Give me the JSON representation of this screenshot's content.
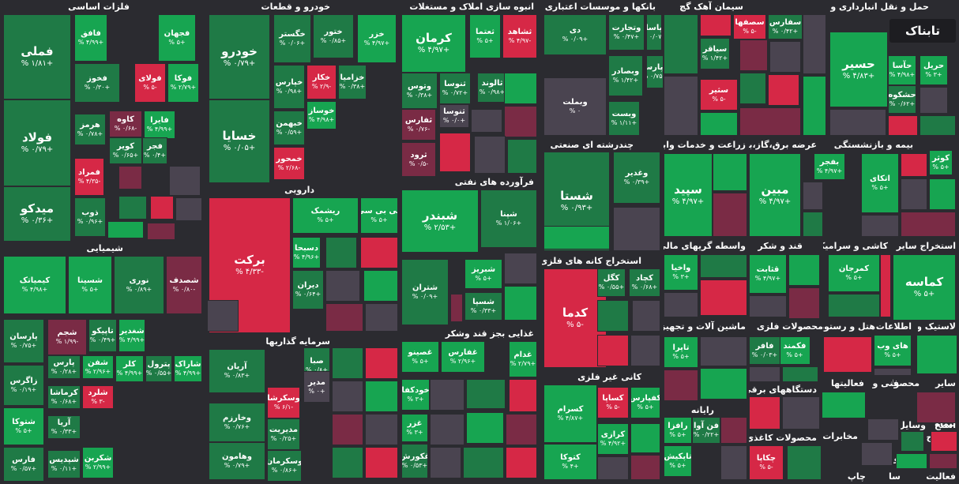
{
  "colors": {
    "pos_strong": "#17a551",
    "pos": "#1f7a46",
    "neutral": "#4a4450",
    "neg": "#7a2b45",
    "neg_strong": "#d62846",
    "bg": "#2b2b30"
  },
  "logo": {
    "text": "تابناک"
  },
  "chart_data": {
    "type": "heatmap",
    "layout": "treemap",
    "sectors": [
      {
        "name": "فلزات اساسی",
        "tiles": [
          {
            "symbol": "فملی",
            "change": "% ۱/۸۱+"
          },
          {
            "symbol": "فولاد",
            "change": "% ۰/۷۹+"
          },
          {
            "symbol": "میدکو",
            "change": "% ۰/۳۶+"
          },
          {
            "symbol": "فافق",
            "change": "% ۴/۹۹+"
          },
          {
            "symbol": "فجهان",
            "change": "% ۵+"
          },
          {
            "symbol": "فخوز",
            "change": "% ۰/۳۰+"
          },
          {
            "symbol": "فولای",
            "change": "% ۵-"
          },
          {
            "symbol": "فوکا",
            "change": "% ۲/۷۹+"
          },
          {
            "symbol": "کاوه",
            "change": "% ۰/۶۸-"
          },
          {
            "symbol": "هرمز",
            "change": "% ۰/۷۸+"
          },
          {
            "symbol": "فایرا",
            "change": "% ۴/۹۹+"
          },
          {
            "symbol": "کویر",
            "change": "% ۰/۶۵+"
          },
          {
            "symbol": "فجر",
            "change": "% ۰/۴+"
          },
          {
            "symbol": "فمراد",
            "change": "% ۴/۳۵-"
          },
          {
            "symbol": "ذوب",
            "change": "% ۰/۹۶+"
          }
        ]
      },
      {
        "name": "شیمیایی",
        "tiles": [
          {
            "symbol": "کیمیاتک",
            "change": "% ۴/۹۸+"
          },
          {
            "symbol": "شسینا",
            "change": "% ۵+"
          },
          {
            "symbol": "نوری",
            "change": "% ۰/۸۹+"
          },
          {
            "symbol": "شصدف",
            "change": "% ۰/۸۰-"
          },
          {
            "symbol": "پارسان",
            "change": "% ۰/۷۵+"
          },
          {
            "symbol": "شجم",
            "change": "% ۱/۹۹-"
          },
          {
            "symbol": "تاپیکو",
            "change": "% ۰/۴۹+"
          },
          {
            "symbol": "شغدیر",
            "change": "% ۴/۹۹+"
          },
          {
            "symbol": "پارس",
            "change": "% ۰/۲۸+"
          },
          {
            "symbol": "شفن",
            "change": "% ۲/۹۶+"
          },
          {
            "symbol": "کلر",
            "change": "% ۴/۹۹+"
          },
          {
            "symbol": "پترول",
            "change": "% ۰/۵۵+"
          },
          {
            "symbol": "شاراک",
            "change": "% ۴/۹۹+"
          },
          {
            "symbol": "زاگرس",
            "change": "% ۰/۱۹+"
          },
          {
            "symbol": "کرماشا",
            "change": "% ۰/۶۸+"
          },
          {
            "symbol": "شلرد",
            "change": "% ۳-"
          },
          {
            "symbol": "شتوکا",
            "change": "% ۵+"
          },
          {
            "symbol": "آریا",
            "change": "% ۰/۳۳+"
          },
          {
            "symbol": "فارس",
            "change": "% ۰/۵۷+"
          },
          {
            "symbol": "شپدیس",
            "change": "% ۰/۱۱+"
          },
          {
            "symbol": "شکربن",
            "change": "% ۲/۹۹+"
          }
        ]
      },
      {
        "name": "خودرو و قطعات",
        "tiles": [
          {
            "symbol": "خودرو",
            "change": "% ۰/۷۹+"
          },
          {
            "symbol": "خسایا",
            "change": "% ۰/۰۵+"
          },
          {
            "symbol": "خگستر",
            "change": "% ۰/۰۶+"
          },
          {
            "symbol": "ختور",
            "change": "% ۰/۸۵+"
          },
          {
            "symbol": "خزر",
            "change": "% ۴/۹۷+"
          },
          {
            "symbol": "خپارس",
            "change": "% ۰/۹۸+"
          },
          {
            "symbol": "خکار",
            "change": "% ۲/۹-"
          },
          {
            "symbol": "خزامیا",
            "change": "% ۰/۳۸+"
          },
          {
            "symbol": "خوساز",
            "change": "% ۴/۹۸+"
          },
          {
            "symbol": "خبهمن",
            "change": "% ۰/۵۹+"
          },
          {
            "symbol": "خمحور",
            "change": "% ۲/۶۸-"
          }
        ]
      },
      {
        "name": "دارویی",
        "tiles": [
          {
            "symbol": "برکت",
            "change": "% ۴/۳۳-"
          },
          {
            "symbol": "ریشمک",
            "change": "% ۵+"
          },
          {
            "symbol": "کی بی سی",
            "change": "% ۵+"
          },
          {
            "symbol": "دسبحا",
            "change": "% ۴/۹۶+"
          },
          {
            "symbol": "دیران",
            "change": "% ۰/۶۴+"
          }
        ]
      },
      {
        "name": "سرمایه گذاریها",
        "tiles": [
          {
            "symbol": "صبا",
            "change": "% ۰/۸+"
          },
          {
            "symbol": "مدیر",
            "change": "% ۰+"
          },
          {
            "symbol": "آریان",
            "change": "% ۰/۸۳+"
          },
          {
            "symbol": "وسکرشا",
            "change": "% ۶/۱-"
          },
          {
            "symbol": "مدیریت",
            "change": "% ۰/۲۵+"
          },
          {
            "symbol": "وخارزم",
            "change": "% ۰/۷۶+"
          },
          {
            "symbol": "وهامون",
            "change": "% ۰/۷۹+"
          },
          {
            "symbol": "وسکرمان",
            "change": "% ۰/۸۶+"
          }
        ]
      },
      {
        "name": "انبوه سازی املاک و مستغلات",
        "tiles": [
          {
            "symbol": "کرمان",
            "change": "% ۴/۹۷+"
          },
          {
            "symbol": "ثعتما",
            "change": "% ۵+"
          },
          {
            "symbol": "ثشاهد",
            "change": "% ۴/۹۷-"
          },
          {
            "symbol": "وتوس",
            "change": "% ۰/۳۸+"
          },
          {
            "symbol": "ثنوسا",
            "change": "% ۰/۷۲+"
          },
          {
            "symbol": "ثالوند",
            "change": "% ۰/۹۸+"
          },
          {
            "symbol": "ثفارس",
            "change": "% ۰/۷۶-"
          },
          {
            "symbol": "ثرود",
            "change": "% ۰/۵-"
          },
          {
            "symbol": "ثنوسا",
            "change": "% ۰/۰+"
          }
        ]
      },
      {
        "name": "فرآورده های نفتی",
        "tiles": [
          {
            "symbol": "شبندر",
            "change": "% ۲/۵۳+"
          },
          {
            "symbol": "شپنا",
            "change": "% ۱/۰۶+"
          },
          {
            "symbol": "شتران",
            "change": "% ۰/۰۹+"
          },
          {
            "symbol": "شبریز",
            "change": "% ۵+"
          },
          {
            "symbol": "شسپا",
            "change": "% ۰/۳۳+"
          }
        ]
      },
      {
        "name": "غذایی بجز قند وشکر",
        "tiles": [
          {
            "symbol": "غصینو",
            "change": "% ۵+"
          },
          {
            "symbol": "غفارس",
            "change": "% ۲/۹۶+"
          },
          {
            "symbol": "غدام",
            "change": "% ۲/۷۹+"
          },
          {
            "symbol": "خودکفا",
            "change": "% ۳+"
          },
          {
            "symbol": "غزر",
            "change": "% ۳+"
          },
          {
            "symbol": "غکورش",
            "change": "% ۰/۵۳+"
          }
        ]
      },
      {
        "name": "بانکها و موسسات اعتباری",
        "tiles": [
          {
            "symbol": "دی",
            "change": "% ۰/۰۹+"
          },
          {
            "symbol": "وتجارت",
            "change": "% ۰/۴۷+"
          },
          {
            "symbol": "وپاسار",
            "change": "% ۰/۰۷+"
          },
          {
            "symbol": "وبملت",
            "change": "% ۰"
          },
          {
            "symbol": "وبصادر",
            "change": "% ۱/۴۲+"
          },
          {
            "symbol": "وپارس",
            "change": "% ۰/۷۵+"
          },
          {
            "symbol": "وبست",
            "change": "% ۱/۱۱+"
          }
        ]
      },
      {
        "name": "چندرشته ای صنعتی",
        "tiles": [
          {
            "symbol": "شستا",
            "change": "% ۰/۹۳+"
          },
          {
            "symbol": "وغدیر",
            "change": "% ۰/۳۹+"
          }
        ]
      },
      {
        "name": "استخراج کانه های فلزی",
        "tiles": [
          {
            "symbol": "کدما",
            "change": "% ۵-"
          },
          {
            "symbol": "کگل",
            "change": "% ۰/۵۵+"
          },
          {
            "symbol": "کچاد",
            "change": "% ۰/۶۸+"
          }
        ]
      },
      {
        "name": "کانی غیر فلزی",
        "tiles": [
          {
            "symbol": "کسرام",
            "change": "% ۴/۸۷+"
          },
          {
            "symbol": "کساپا",
            "change": "% ۵-"
          },
          {
            "symbol": "کفپارس",
            "change": "% ۵+"
          },
          {
            "symbol": "کرازی",
            "change": "% ۴/۹۲+"
          },
          {
            "symbol": "کتوکا",
            "change": "% ۴+"
          }
        ]
      },
      {
        "name": "سیمان آهک گچ",
        "tiles": [
          {
            "symbol": "سصفها",
            "change": "% ۵-"
          },
          {
            "symbol": "سفارس",
            "change": "% ۰/۴۲+"
          },
          {
            "symbol": "سیاقر",
            "change": "% ۱/۴۲+"
          },
          {
            "symbol": "سثیر",
            "change": "% ۵-"
          }
        ]
      },
      {
        "name": "حمل و نقل انبارداری و ارتباطات",
        "tiles": [
          {
            "symbol": "حسیر",
            "change": "% ۴/۸۳+"
          },
          {
            "symbol": "حآسا",
            "change": "% ۴/۹۸+"
          },
          {
            "symbol": "حشکوه",
            "change": "% ۰/۶۲+"
          },
          {
            "symbol": "حریل",
            "change": "% ۳+"
          }
        ]
      },
      {
        "name": "زراعت و خدمات وابسته",
        "tiles": [
          {
            "symbol": "سپید",
            "change": "% ۴/۹۷+"
          }
        ]
      },
      {
        "name": "عرضه برق،گاز،بخار و آب گرم",
        "tiles": [
          {
            "symbol": "مبین",
            "change": "% ۴/۹۷+"
          },
          {
            "symbol": "بفجر",
            "change": "% ۴/۹۷+"
          }
        ]
      },
      {
        "name": "بیمه و بازنشستگی",
        "tiles": [
          {
            "symbol": "اتکای",
            "change": "% ۵+"
          },
          {
            "symbol": "کوثر",
            "change": "% ۵+"
          }
        ]
      },
      {
        "name": "واسطه گریهای مالی و",
        "tiles": [
          {
            "symbol": "واخیا",
            "change": "% ۳+"
          }
        ]
      },
      {
        "name": "قند و شکر",
        "tiles": [
          {
            "symbol": "قثابت",
            "change": "% ۴/۹۷+"
          }
        ]
      },
      {
        "name": "کاشی و سرامیک",
        "tiles": [
          {
            "symbol": "کمرجان",
            "change": "% ۵+"
          }
        ]
      },
      {
        "name": "استخراج سایر",
        "tiles": [
          {
            "symbol": "کماسه",
            "change": "% ۵+"
          }
        ]
      },
      {
        "name": "ماشین آلات و تجهیزات",
        "tiles": [
          {
            "symbol": "تاپرا",
            "change": "% ۵+"
          }
        ]
      },
      {
        "name": "محصولات فلزی",
        "tiles": [
          {
            "symbol": "فکمند",
            "change": "% ۵+"
          },
          {
            "symbol": "فافر",
            "change": "% ۰/۰۳+"
          }
        ]
      },
      {
        "name": "هتل و رستوران",
        "tiles": []
      },
      {
        "name": "اطلاعات و",
        "tiles": [
          {
            "symbol": "های وب",
            "change": "% ۵+"
          }
        ]
      },
      {
        "name": "لاستیک و",
        "tiles": []
      },
      {
        "name": "رایانه",
        "tiles": [
          {
            "symbol": "رافزا",
            "change": "% ۵+"
          },
          {
            "symbol": "فن آوا",
            "change": "% ۰/۲۲+"
          },
          {
            "symbol": "تاپکیش",
            "change": "% ۵+"
          }
        ]
      },
      {
        "name": "دستگاههای برقی",
        "tiles": []
      },
      {
        "name": "محصولات کاغذی",
        "tiles": [
          {
            "symbol": "چکاپا",
            "change": "% ۵-"
          }
        ]
      },
      {
        "name": "فعالیتها",
        "tiles": []
      },
      {
        "name": "فنی و",
        "tiles": []
      },
      {
        "name": "محصولات",
        "tiles": [
          {
            "symbol": "مادیرا",
            "change": "% ۲/۶+"
          }
        ]
      },
      {
        "name": "سایر",
        "tiles": []
      },
      {
        "name": "مخابرات",
        "tiles": [
          {
            "symbol": "اخابر",
            "change": "% ۰/۳۲+"
          }
        ]
      },
      {
        "name": "استخر",
        "tiles": []
      },
      {
        "name": "وسایل",
        "tiles": []
      },
      {
        "name": "استخ",
        "tiles": []
      },
      {
        "name": "بیماه",
        "tiles": []
      },
      {
        "name": "خرده",
        "tiles": []
      },
      {
        "name": "محصو",
        "tiles": []
      },
      {
        "name": "چاپ",
        "tiles": []
      },
      {
        "name": "منسوج",
        "tiles": []
      },
      {
        "name": "سا",
        "tiles": []
      },
      {
        "name": "فعالیت",
        "tiles": []
      }
    ]
  }
}
